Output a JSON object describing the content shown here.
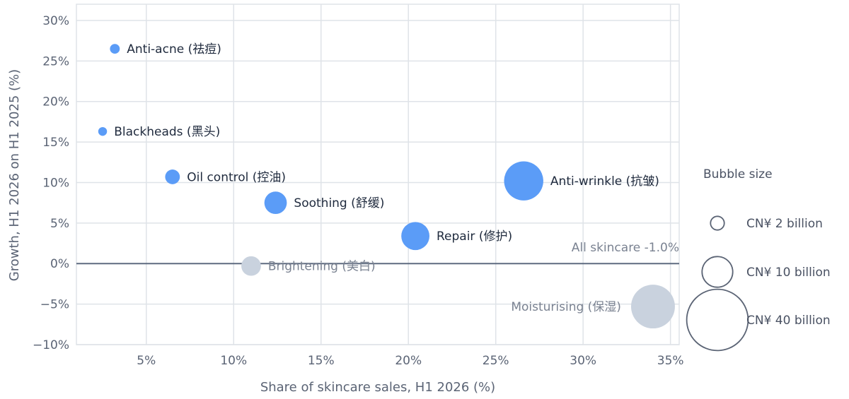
{
  "chart_data": {
    "type": "bubble",
    "xlabel": "Share of skincare sales, H1 2026 (%)",
    "ylabel": "Growth, H1 2026 on H1 2025 (%)",
    "xlim": [
      1,
      35.5
    ],
    "ylim": [
      -10,
      32
    ],
    "xticks": [
      5,
      10,
      15,
      20,
      25,
      30,
      35
    ],
    "yticks": [
      -10,
      -5,
      0,
      5,
      10,
      15,
      20,
      25,
      30
    ],
    "x_tick_labels": [
      "5%",
      "10%",
      "15%",
      "20%",
      "25%",
      "30%",
      "35%"
    ],
    "y_tick_labels": [
      "−10%",
      "−5%",
      "0%",
      "5%",
      "10%",
      "15%",
      "20%",
      "25%",
      "30%"
    ],
    "grid": true,
    "points": [
      {
        "label": "Anti-acne (祛痘)",
        "x": 3.2,
        "y": 26.5,
        "size": 2,
        "highlight": true
      },
      {
        "label": "Blackheads (黑头)",
        "x": 2.5,
        "y": 16.3,
        "size": 1.6,
        "highlight": true
      },
      {
        "label": "Oil control (控油)",
        "x": 6.5,
        "y": 10.7,
        "size": 4.5,
        "highlight": true
      },
      {
        "label": "Soothing (舒缓)",
        "x": 12.4,
        "y": 7.5,
        "size": 10.5,
        "highlight": true
      },
      {
        "label": "Repair (修护)",
        "x": 20.4,
        "y": 3.4,
        "size": 16.5,
        "highlight": true
      },
      {
        "label": "Anti-wrinkle (抗皱)",
        "x": 26.6,
        "y": 10.2,
        "size": 32,
        "highlight": true
      },
      {
        "label": "Brightening (美白)",
        "x": 11.0,
        "y": -0.3,
        "size": 8,
        "highlight": false
      },
      {
        "label": "Moisturising (保湿)",
        "x": 34.0,
        "y": -5.3,
        "size": 40,
        "highlight": false
      }
    ],
    "reference_line": {
      "y": -1.0,
      "label": "All skincare -1.0%"
    },
    "legend": {
      "title": "Bubble size",
      "items": [
        {
          "label": "CN¥ 2 billion",
          "size": 2
        },
        {
          "label": "CN¥ 10 billion",
          "size": 10
        },
        {
          "label": "CN¥ 40 billion",
          "size": 40
        }
      ]
    },
    "colors": {
      "highlight": "#5b9cf7",
      "muted": "#c9d2de",
      "grid": "#dfe3e8",
      "reference": "#5f6b80"
    }
  }
}
